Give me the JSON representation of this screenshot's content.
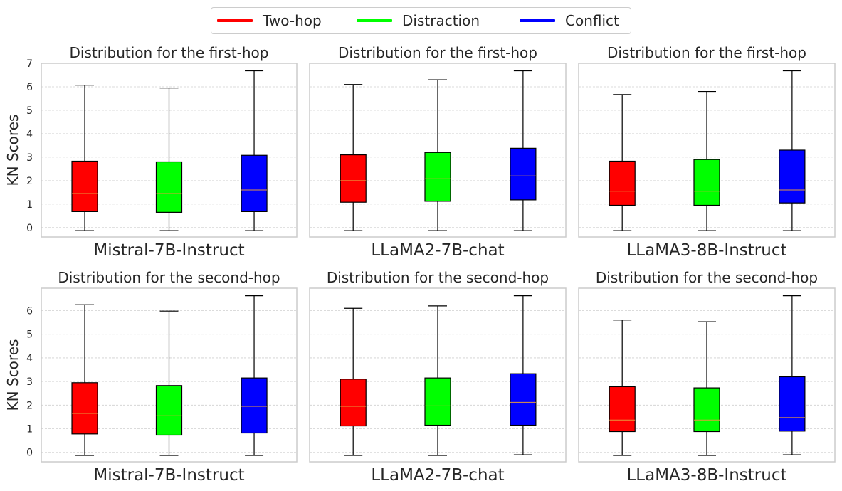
{
  "legend": {
    "items": [
      {
        "label": "Two-hop",
        "color": "#ff0000"
      },
      {
        "label": "Distraction",
        "color": "#00ff00"
      },
      {
        "label": "Conflict",
        "color": "#0000ff"
      }
    ]
  },
  "chart_data": [
    {
      "type": "box",
      "title": "Distribution for the first-hop",
      "xlabel": "Mistral-7B-Instruct",
      "ylabel": "KN Scores",
      "ylim": [
        -0.4,
        7
      ],
      "yticks": [
        0,
        1,
        2,
        3,
        4,
        5,
        6,
        7
      ],
      "grid": true,
      "series": [
        {
          "name": "Two-hop",
          "color": "#ff0000",
          "min": -0.13,
          "q1": 0.68,
          "median": 1.45,
          "q3": 2.83,
          "max": 6.07
        },
        {
          "name": "Distraction",
          "color": "#00ff00",
          "min": -0.13,
          "q1": 0.65,
          "median": 1.45,
          "q3": 2.8,
          "max": 5.95
        },
        {
          "name": "Conflict",
          "color": "#0000ff",
          "min": -0.13,
          "q1": 0.68,
          "median": 1.6,
          "q3": 3.08,
          "max": 6.68
        }
      ]
    },
    {
      "type": "box",
      "title": "Distribution for the first-hop",
      "xlabel": "LLaMA2-7B-chat",
      "ylabel": "",
      "ylim": [
        -0.4,
        7
      ],
      "yticks": [
        0,
        1,
        2,
        3,
        4,
        5,
        6,
        7
      ],
      "grid": true,
      "series": [
        {
          "name": "Two-hop",
          "color": "#ff0000",
          "min": -0.13,
          "q1": 1.08,
          "median": 2.0,
          "q3": 3.1,
          "max": 6.1
        },
        {
          "name": "Distraction",
          "color": "#00ff00",
          "min": -0.13,
          "q1": 1.12,
          "median": 2.08,
          "q3": 3.2,
          "max": 6.3
        },
        {
          "name": "Conflict",
          "color": "#0000ff",
          "min": -0.13,
          "q1": 1.18,
          "median": 2.2,
          "q3": 3.38,
          "max": 6.68
        }
      ]
    },
    {
      "type": "box",
      "title": "Distribution for the first-hop",
      "xlabel": "LLaMA3-8B-Instruct",
      "ylabel": "",
      "ylim": [
        -0.4,
        7
      ],
      "yticks": [
        0,
        1,
        2,
        3,
        4,
        5,
        6,
        7
      ],
      "grid": true,
      "series": [
        {
          "name": "Two-hop",
          "color": "#ff0000",
          "min": -0.13,
          "q1": 0.95,
          "median": 1.55,
          "q3": 2.83,
          "max": 5.67
        },
        {
          "name": "Distraction",
          "color": "#00ff00",
          "min": -0.13,
          "q1": 0.95,
          "median": 1.55,
          "q3": 2.9,
          "max": 5.8
        },
        {
          "name": "Conflict",
          "color": "#0000ff",
          "min": -0.13,
          "q1": 1.05,
          "median": 1.6,
          "q3": 3.3,
          "max": 6.68
        }
      ]
    },
    {
      "type": "box",
      "title": "Distribution for the second-hop",
      "xlabel": "Mistral-7B-Instruct",
      "ylabel": "KN Scores",
      "ylim": [
        -0.4,
        6.95
      ],
      "yticks": [
        0,
        1,
        2,
        3,
        4,
        5,
        6
      ],
      "grid": true,
      "series": [
        {
          "name": "Two-hop",
          "color": "#ff0000",
          "min": -0.13,
          "q1": 0.78,
          "median": 1.65,
          "q3": 2.95,
          "max": 6.25
        },
        {
          "name": "Distraction",
          "color": "#00ff00",
          "min": -0.13,
          "q1": 0.73,
          "median": 1.55,
          "q3": 2.83,
          "max": 5.98
        },
        {
          "name": "Conflict",
          "color": "#0000ff",
          "min": -0.13,
          "q1": 0.82,
          "median": 1.95,
          "q3": 3.15,
          "max": 6.63
        }
      ]
    },
    {
      "type": "box",
      "title": "Distribution for the second-hop",
      "xlabel": "LLaMA2-7B-chat",
      "ylabel": "",
      "ylim": [
        -0.4,
        6.95
      ],
      "yticks": [
        0,
        1,
        2,
        3,
        4,
        5,
        6
      ],
      "grid": true,
      "series": [
        {
          "name": "Two-hop",
          "color": "#ff0000",
          "min": -0.13,
          "q1": 1.12,
          "median": 1.95,
          "q3": 3.1,
          "max": 6.1
        },
        {
          "name": "Distraction",
          "color": "#00ff00",
          "min": -0.13,
          "q1": 1.15,
          "median": 1.97,
          "q3": 3.15,
          "max": 6.2
        },
        {
          "name": "Conflict",
          "color": "#0000ff",
          "min": -0.1,
          "q1": 1.15,
          "median": 2.12,
          "q3": 3.33,
          "max": 6.63
        }
      ]
    },
    {
      "type": "box",
      "title": "Distribution for the second-hop",
      "xlabel": "LLaMA3-8B-Instruct",
      "ylabel": "",
      "ylim": [
        -0.4,
        6.95
      ],
      "yticks": [
        0,
        1,
        2,
        3,
        4,
        5,
        6
      ],
      "grid": true,
      "series": [
        {
          "name": "Two-hop",
          "color": "#ff0000",
          "min": -0.13,
          "q1": 0.88,
          "median": 1.37,
          "q3": 2.78,
          "max": 5.6
        },
        {
          "name": "Distraction",
          "color": "#00ff00",
          "min": -0.13,
          "q1": 0.88,
          "median": 1.37,
          "q3": 2.73,
          "max": 5.53
        },
        {
          "name": "Conflict",
          "color": "#0000ff",
          "min": -0.1,
          "q1": 0.9,
          "median": 1.47,
          "q3": 3.2,
          "max": 6.63
        }
      ]
    }
  ]
}
